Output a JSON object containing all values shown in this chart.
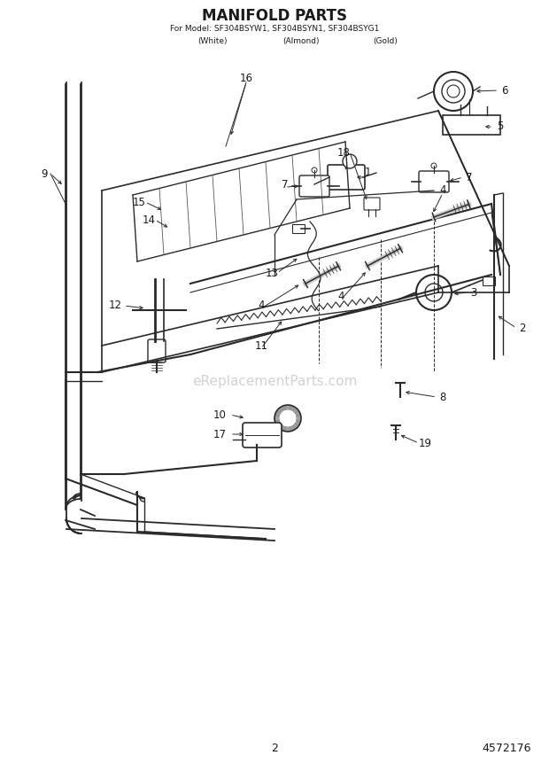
{
  "title_line1": "MANIFOLD PARTS",
  "title_line2": "For Model: SF304BSYW1, SF304BSYN1, SF304BSYG1",
  "title_line3_w": "(White)",
  "title_line3_a": "(Almond)",
  "title_line3_g": "(Gold)",
  "page_number": "2",
  "part_number": "4572176",
  "watermark": "eReplacementParts.com",
  "bg_color": "#ffffff",
  "line_color": "#2a2a2a",
  "text_color": "#1a1a1a",
  "figsize": [
    6.2,
    8.61
  ],
  "dpi": 100
}
